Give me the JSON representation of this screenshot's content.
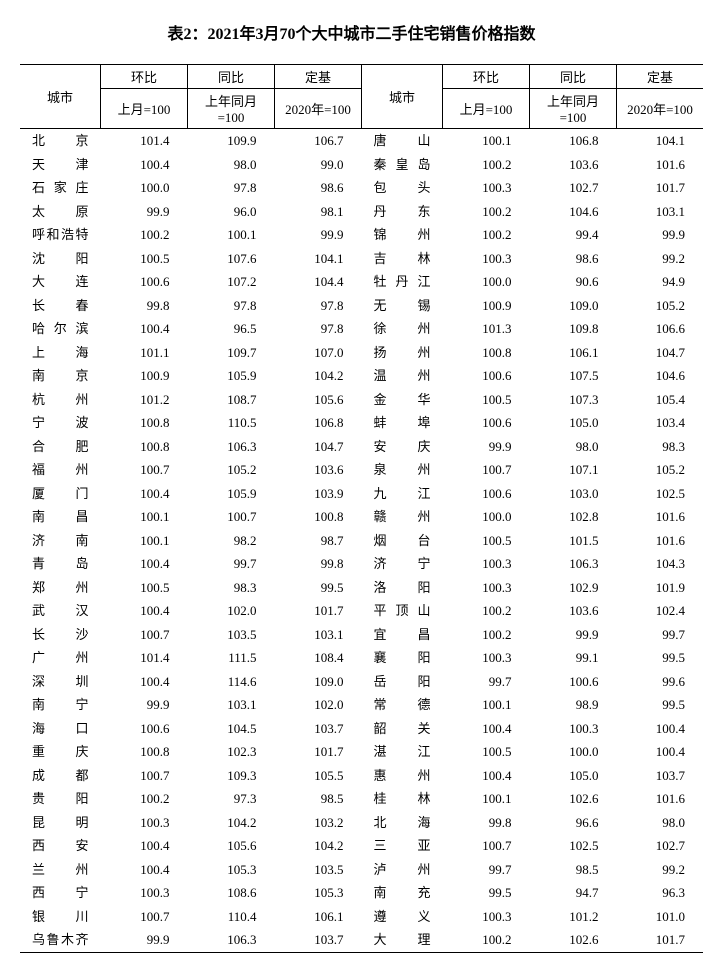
{
  "title": "表2：2021年3月70个大中城市二手住宅销售价格指数",
  "headers": {
    "city": "城市",
    "mom": "环比",
    "yoy": "同比",
    "base": "定基",
    "mom_sub": "上月=100",
    "yoy_sub": "上年同月=100",
    "base_sub": "2020年=100"
  },
  "table": {
    "columns": [
      "city",
      "mom",
      "yoy",
      "base"
    ],
    "left_rows": [
      {
        "city": "北　　京",
        "mom": "101.4",
        "yoy": "109.9",
        "base": "106.7"
      },
      {
        "city": "天　　津",
        "mom": "100.4",
        "yoy": "98.0",
        "base": "99.0"
      },
      {
        "city": "石 家 庄",
        "mom": "100.0",
        "yoy": "97.8",
        "base": "98.6"
      },
      {
        "city": "太　　原",
        "mom": "99.9",
        "yoy": "96.0",
        "base": "98.1"
      },
      {
        "city": "呼和浩特",
        "mom": "100.2",
        "yoy": "100.1",
        "base": "99.9"
      },
      {
        "city": "沈　　阳",
        "mom": "100.5",
        "yoy": "107.6",
        "base": "104.1"
      },
      {
        "city": "大　　连",
        "mom": "100.6",
        "yoy": "107.2",
        "base": "104.4"
      },
      {
        "city": "长　　春",
        "mom": "99.8",
        "yoy": "97.8",
        "base": "97.8"
      },
      {
        "city": "哈 尔 滨",
        "mom": "100.4",
        "yoy": "96.5",
        "base": "97.8"
      },
      {
        "city": "上　　海",
        "mom": "101.1",
        "yoy": "109.7",
        "base": "107.0"
      },
      {
        "city": "南　　京",
        "mom": "100.9",
        "yoy": "105.9",
        "base": "104.2"
      },
      {
        "city": "杭　　州",
        "mom": "101.2",
        "yoy": "108.7",
        "base": "105.6"
      },
      {
        "city": "宁　　波",
        "mom": "100.8",
        "yoy": "110.5",
        "base": "106.8"
      },
      {
        "city": "合　　肥",
        "mom": "100.8",
        "yoy": "106.3",
        "base": "104.7"
      },
      {
        "city": "福　　州",
        "mom": "100.7",
        "yoy": "105.2",
        "base": "103.6"
      },
      {
        "city": "厦　　门",
        "mom": "100.4",
        "yoy": "105.9",
        "base": "103.9"
      },
      {
        "city": "南　　昌",
        "mom": "100.1",
        "yoy": "100.7",
        "base": "100.8"
      },
      {
        "city": "济　　南",
        "mom": "100.1",
        "yoy": "98.2",
        "base": "98.7"
      },
      {
        "city": "青　　岛",
        "mom": "100.4",
        "yoy": "99.7",
        "base": "99.8"
      },
      {
        "city": "郑　　州",
        "mom": "100.5",
        "yoy": "98.3",
        "base": "99.5"
      },
      {
        "city": "武　　汉",
        "mom": "100.4",
        "yoy": "102.0",
        "base": "101.7"
      },
      {
        "city": "长　　沙",
        "mom": "100.7",
        "yoy": "103.5",
        "base": "103.1"
      },
      {
        "city": "广　　州",
        "mom": "101.4",
        "yoy": "111.5",
        "base": "108.4"
      },
      {
        "city": "深　　圳",
        "mom": "100.4",
        "yoy": "114.6",
        "base": "109.0"
      },
      {
        "city": "南　　宁",
        "mom": "99.9",
        "yoy": "103.1",
        "base": "102.0"
      },
      {
        "city": "海　　口",
        "mom": "100.6",
        "yoy": "104.5",
        "base": "103.7"
      },
      {
        "city": "重　　庆",
        "mom": "100.8",
        "yoy": "102.3",
        "base": "101.7"
      },
      {
        "city": "成　　都",
        "mom": "100.7",
        "yoy": "109.3",
        "base": "105.5"
      },
      {
        "city": "贵　　阳",
        "mom": "100.2",
        "yoy": "97.3",
        "base": "98.5"
      },
      {
        "city": "昆　　明",
        "mom": "100.3",
        "yoy": "104.2",
        "base": "103.2"
      },
      {
        "city": "西　　安",
        "mom": "100.4",
        "yoy": "105.6",
        "base": "104.2"
      },
      {
        "city": "兰　　州",
        "mom": "100.4",
        "yoy": "105.3",
        "base": "103.5"
      },
      {
        "city": "西　　宁",
        "mom": "100.3",
        "yoy": "108.6",
        "base": "105.3"
      },
      {
        "city": "银　　川",
        "mom": "100.7",
        "yoy": "110.4",
        "base": "106.1"
      },
      {
        "city": "乌鲁木齐",
        "mom": "99.9",
        "yoy": "106.3",
        "base": "103.7"
      }
    ],
    "right_rows": [
      {
        "city": "唐　　山",
        "mom": "100.1",
        "yoy": "106.8",
        "base": "104.1"
      },
      {
        "city": "秦 皇 岛",
        "mom": "100.2",
        "yoy": "103.6",
        "base": "101.6"
      },
      {
        "city": "包　　头",
        "mom": "100.3",
        "yoy": "102.7",
        "base": "101.7"
      },
      {
        "city": "丹　　东",
        "mom": "100.2",
        "yoy": "104.6",
        "base": "103.1"
      },
      {
        "city": "锦　　州",
        "mom": "100.2",
        "yoy": "99.4",
        "base": "99.9"
      },
      {
        "city": "吉　　林",
        "mom": "100.3",
        "yoy": "98.6",
        "base": "99.2"
      },
      {
        "city": "牡 丹 江",
        "mom": "100.0",
        "yoy": "90.6",
        "base": "94.9"
      },
      {
        "city": "无　　锡",
        "mom": "100.9",
        "yoy": "109.0",
        "base": "105.2"
      },
      {
        "city": "徐　　州",
        "mom": "101.3",
        "yoy": "109.8",
        "base": "106.6"
      },
      {
        "city": "扬　　州",
        "mom": "100.8",
        "yoy": "106.1",
        "base": "104.7"
      },
      {
        "city": "温　　州",
        "mom": "100.6",
        "yoy": "107.5",
        "base": "104.6"
      },
      {
        "city": "金　　华",
        "mom": "100.5",
        "yoy": "107.3",
        "base": "105.4"
      },
      {
        "city": "蚌　　埠",
        "mom": "100.6",
        "yoy": "105.0",
        "base": "103.4"
      },
      {
        "city": "安　　庆",
        "mom": "99.9",
        "yoy": "98.0",
        "base": "98.3"
      },
      {
        "city": "泉　　州",
        "mom": "100.7",
        "yoy": "107.1",
        "base": "105.2"
      },
      {
        "city": "九　　江",
        "mom": "100.6",
        "yoy": "103.0",
        "base": "102.5"
      },
      {
        "city": "赣　　州",
        "mom": "100.0",
        "yoy": "102.8",
        "base": "101.6"
      },
      {
        "city": "烟　　台",
        "mom": "100.5",
        "yoy": "101.5",
        "base": "101.6"
      },
      {
        "city": "济　　宁",
        "mom": "100.3",
        "yoy": "106.3",
        "base": "104.3"
      },
      {
        "city": "洛　　阳",
        "mom": "100.3",
        "yoy": "102.9",
        "base": "101.9"
      },
      {
        "city": "平 顶 山",
        "mom": "100.2",
        "yoy": "103.6",
        "base": "102.4"
      },
      {
        "city": "宜　　昌",
        "mom": "100.2",
        "yoy": "99.9",
        "base": "99.7"
      },
      {
        "city": "襄　　阳",
        "mom": "100.3",
        "yoy": "99.1",
        "base": "99.5"
      },
      {
        "city": "岳　　阳",
        "mom": "99.7",
        "yoy": "100.6",
        "base": "99.6"
      },
      {
        "city": "常　　德",
        "mom": "100.1",
        "yoy": "98.9",
        "base": "99.5"
      },
      {
        "city": "韶　　关",
        "mom": "100.4",
        "yoy": "100.3",
        "base": "100.4"
      },
      {
        "city": "湛　　江",
        "mom": "100.5",
        "yoy": "100.0",
        "base": "100.4"
      },
      {
        "city": "惠　　州",
        "mom": "100.4",
        "yoy": "105.0",
        "base": "103.7"
      },
      {
        "city": "桂　　林",
        "mom": "100.1",
        "yoy": "102.6",
        "base": "101.6"
      },
      {
        "city": "北　　海",
        "mom": "99.8",
        "yoy": "96.6",
        "base": "98.0"
      },
      {
        "city": "三　　亚",
        "mom": "100.7",
        "yoy": "102.5",
        "base": "102.7"
      },
      {
        "city": "泸　　州",
        "mom": "99.7",
        "yoy": "98.5",
        "base": "99.2"
      },
      {
        "city": "南　　充",
        "mom": "99.5",
        "yoy": "94.7",
        "base": "96.3"
      },
      {
        "city": "遵　　义",
        "mom": "100.3",
        "yoy": "101.2",
        "base": "101.0"
      },
      {
        "city": "大　　理",
        "mom": "100.2",
        "yoy": "102.6",
        "base": "101.7"
      }
    ]
  }
}
